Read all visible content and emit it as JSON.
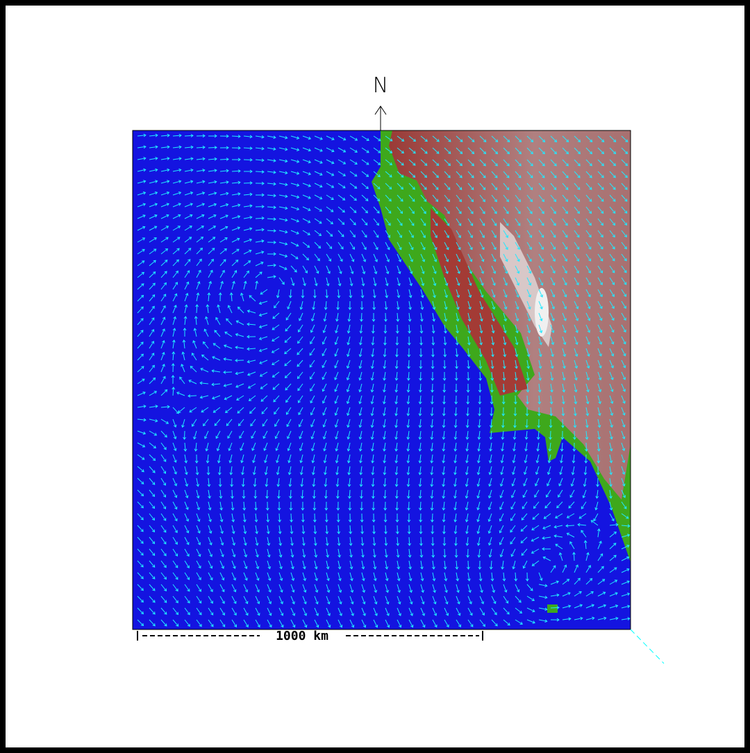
{
  "north_label": "N",
  "scale_label": "1000 km"
}
